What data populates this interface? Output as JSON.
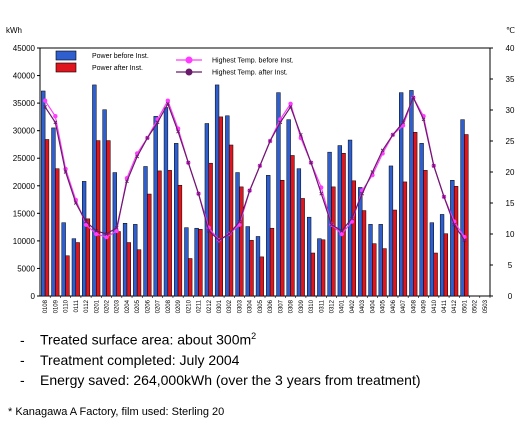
{
  "chart_data": {
    "type": "bar",
    "title": "",
    "ylabel_left": "kWh",
    "ylabel_right": "℃",
    "ylim_left": [
      0,
      45000
    ],
    "yticks_left": [
      0,
      5000,
      10000,
      15000,
      20000,
      25000,
      30000,
      35000,
      40000,
      45000
    ],
    "ylim_right": [
      0,
      40
    ],
    "yticks_right": [
      0,
      5,
      10,
      15,
      20,
      25,
      30,
      35,
      40
    ],
    "grid": false,
    "legend_position": "top",
    "categories": [
      "0108",
      "0109",
      "0110",
      "0111",
      "0112",
      "0201",
      "0202",
      "0203",
      "0204",
      "0205",
      "0206",
      "0207",
      "0208",
      "0209",
      "0210",
      "0211",
      "0212",
      "0301",
      "0302",
      "0303",
      "0304",
      "0305",
      "0306",
      "0307",
      "0308",
      "0309",
      "0310",
      "0311",
      "0312",
      "0401",
      "0402",
      "0403",
      "0404",
      "0405",
      "0406",
      "0407",
      "0408",
      "0409",
      "0410",
      "0411",
      "0412",
      "0501",
      "0502",
      "0503"
    ],
    "series": [
      {
        "name": "Power  before  Inst.",
        "kind": "bar",
        "axis": "left",
        "color": "#2f5fcf",
        "values": [
          37200,
          30500,
          13300,
          10400,
          20800,
          38300,
          33800,
          22400,
          13200,
          13000,
          23500,
          32600,
          34200,
          27700,
          12400,
          12300,
          31300,
          38300,
          32700,
          22400,
          12600,
          10800,
          21900,
          36900,
          32000,
          23100,
          14300,
          10400,
          26100,
          27300,
          28300,
          19700,
          13000,
          13000,
          23600,
          36900,
          37300,
          27700,
          13300,
          14800,
          21000,
          32000,
          null,
          null
        ]
      },
      {
        "name": "Power  after  Inst.",
        "kind": "bar",
        "axis": "left",
        "color": "#e0161f",
        "values": [
          28400,
          23100,
          7300,
          9700,
          14000,
          28200,
          28200,
          11700,
          9700,
          8400,
          18500,
          22700,
          22800,
          20100,
          6800,
          12100,
          24100,
          32500,
          27400,
          19800,
          10100,
          7100,
          12300,
          21000,
          25500,
          17700,
          7800,
          10200,
          19800,
          25900,
          20900,
          15500,
          9500,
          8600,
          15600,
          20700,
          29700,
          22800,
          7800,
          11300,
          19900,
          29300,
          null,
          null
        ]
      },
      {
        "name": "Highest Temp.  before Inst.",
        "kind": "line",
        "axis": "right",
        "color": "#ff3cff",
        "values": [
          31.5,
          29,
          20.5,
          15.5,
          11.5,
          10,
          9.5,
          10.5,
          19,
          23,
          25.5,
          28.5,
          31.5,
          27,
          21.5,
          16.5,
          11,
          9,
          10,
          11.5,
          17,
          21,
          25,
          28.5,
          31,
          25.5,
          21.5,
          17.5,
          11.5,
          10,
          12,
          17,
          19.5,
          23,
          26,
          27.5,
          32,
          29,
          21,
          16,
          12,
          9.5,
          null,
          null
        ]
      },
      {
        "name": "Highest Temp.  after  Inst.",
        "kind": "line",
        "axis": "right",
        "color": "#6a1a6a",
        "values": [
          30.5,
          28,
          20,
          15,
          12,
          10.5,
          10,
          11,
          18.5,
          22.5,
          25.5,
          28,
          31,
          26.5,
          21.5,
          16.5,
          10.5,
          9,
          10,
          12,
          17,
          21,
          25,
          28,
          30.5,
          26,
          21.5,
          16.5,
          11.5,
          10.5,
          12.5,
          16.5,
          20,
          23.5,
          26,
          28,
          32,
          28.5,
          21,
          16,
          11.5,
          9,
          null,
          null
        ]
      }
    ]
  },
  "notes": [
    {
      "dash": "-",
      "text": "Treated  surface area:  about  300m",
      "sup": "2"
    },
    {
      "dash": "-",
      "text": "Treatment  completed:  July 2004",
      "sup": ""
    },
    {
      "dash": "-",
      "text": "Energy saved:  264,000kWh  (over the 3 years from treatment)",
      "sup": ""
    }
  ],
  "footnote": "* Kanagawa A Factory, film used: Sterling 20"
}
